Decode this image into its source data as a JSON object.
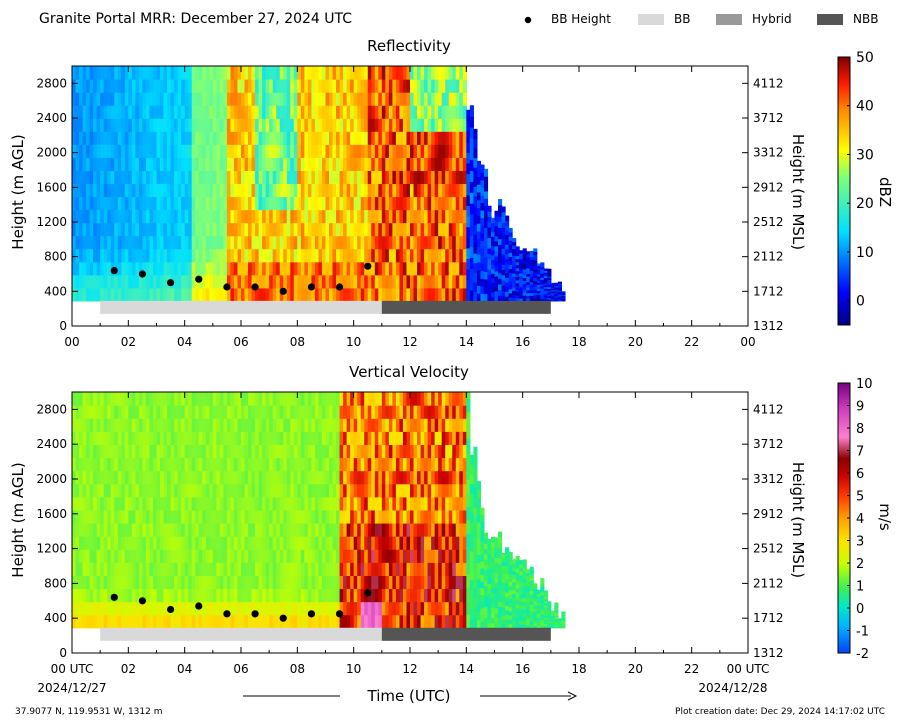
{
  "header": {
    "title": "Granite Portal MRR:  December 27, 2024 UTC",
    "legend": [
      {
        "label": "BB Height",
        "marker": "dot",
        "color": "#000000"
      },
      {
        "label": "BB",
        "marker": "box",
        "color": "#d9d9d9"
      },
      {
        "label": "Hybrid",
        "marker": "box",
        "color": "#999999"
      },
      {
        "label": "NBB",
        "marker": "box",
        "color": "#555555"
      }
    ]
  },
  "footer": {
    "location": "37.9077 N, 119.9531 W, 1312 m",
    "creation": "Plot creation date: Dec 29, 2024 14:17:02 UTC",
    "time_label": "Time (UTC)",
    "date_start": "2024/12/27",
    "date_end": "2024/12/28"
  },
  "chart_data": [
    {
      "type": "heatmap",
      "title": "Reflectivity",
      "ylabel": "Height (m AGL)",
      "ylabel_right": "Height (m MSL)",
      "colorbar_label": "dBZ",
      "colorbar_ticks": [
        "50",
        "40",
        "30",
        "20",
        "10",
        "0"
      ],
      "colorbar_range": [
        -5,
        50
      ],
      "colorscale": "jet",
      "xlim": [
        0,
        24
      ],
      "x_ticks": [
        "00",
        "02",
        "04",
        "06",
        "08",
        "10",
        "12",
        "14",
        "16",
        "18",
        "20",
        "22",
        "00"
      ],
      "ylim": [
        0,
        3000
      ],
      "y_ticks": [
        "0",
        "400",
        "800",
        "1200",
        "1600",
        "2000",
        "2400",
        "2800"
      ],
      "y_ticks_right": [
        "1312",
        "1712",
        "2112",
        "2512",
        "2912",
        "3312",
        "3712",
        "4112"
      ],
      "data_top_extent": [
        [
          0,
          3000
        ],
        [
          4.5,
          3000
        ],
        [
          8,
          3000
        ],
        [
          12,
          3000
        ],
        [
          14,
          3000
        ],
        [
          14.5,
          1700
        ],
        [
          15.5,
          1150
        ],
        [
          16.5,
          850
        ],
        [
          17.1,
          550
        ],
        [
          17.5,
          400
        ]
      ],
      "data_bottom_height": 290,
      "segments": [
        {
          "t0": 0,
          "t1": 5.5,
          "dbz": 14,
          "desc": "cyan-blue aloft, yellow-green near bottom"
        },
        {
          "t0": 5.5,
          "t1": 10.5,
          "dbz": 33,
          "desc": "orange"
        },
        {
          "t0": 10.5,
          "t1": 14,
          "dbz": 40,
          "desc": "orange-red"
        },
        {
          "t0": 14,
          "t1": 17.5,
          "dbz": 3,
          "desc": "blue"
        }
      ],
      "bb_height": {
        "x": [
          1.5,
          2.5,
          3.5,
          4.5,
          5.5,
          6.5,
          7.5,
          8.5,
          9.5,
          10.5
        ],
        "y": [
          640,
          600,
          500,
          540,
          450,
          450,
          400,
          450,
          450,
          690
        ]
      },
      "bb_type_bar": [
        {
          "type": "BB",
          "start": 1,
          "end": 11
        },
        {
          "type": "NBB",
          "start": 11,
          "end": 17
        }
      ]
    },
    {
      "type": "heatmap",
      "title": "Vertical Velocity",
      "ylabel": "Height (m AGL)",
      "ylabel_right": "Height (m MSL)",
      "colorbar_label": "m/s",
      "colorbar_ticks": [
        "10",
        "9",
        "8",
        "7",
        "6",
        "5",
        "4",
        "3",
        "2",
        "1",
        "0",
        "-1",
        "-2"
      ],
      "colorbar_range": [
        -2,
        10
      ],
      "colorscale": "velocity",
      "xlim": [
        0,
        24
      ],
      "x_ticks": [
        "00 UTC",
        "02",
        "04",
        "06",
        "08",
        "10",
        "12",
        "14",
        "16",
        "18",
        "20",
        "22",
        "00 UTC"
      ],
      "ylim": [
        0,
        3000
      ],
      "y_ticks": [
        "0",
        "400",
        "800",
        "1200",
        "1600",
        "2000",
        "2400",
        "2800"
      ],
      "y_ticks_right": [
        "1312",
        "1712",
        "2112",
        "2512",
        "2912",
        "3312",
        "3712",
        "4112"
      ],
      "data_top_extent": [
        [
          0,
          3000
        ],
        [
          4.5,
          3000
        ],
        [
          8,
          3000
        ],
        [
          12,
          3000
        ],
        [
          14,
          3000
        ],
        [
          14.5,
          1700
        ],
        [
          15.5,
          1150
        ],
        [
          16.5,
          850
        ],
        [
          17.1,
          550
        ],
        [
          17.5,
          400
        ]
      ],
      "data_bottom_height": 290,
      "segments": [
        {
          "t0": 0,
          "t1": 9.5,
          "ms": 1.5,
          "desc": "green aloft, red near bottom"
        },
        {
          "t0": 9.5,
          "t1": 14,
          "ms": 4.5,
          "desc": "yellow-orange-red"
        },
        {
          "t0": 14,
          "t1": 17.5,
          "ms": 0.5,
          "desc": "green-cyan"
        }
      ],
      "bb_height": {
        "x": [
          1.5,
          2.5,
          3.5,
          4.5,
          5.5,
          6.5,
          7.5,
          8.5,
          9.5,
          10.5
        ],
        "y": [
          640,
          600,
          500,
          540,
          450,
          450,
          400,
          450,
          450,
          690
        ]
      },
      "bb_type_bar": [
        {
          "type": "BB",
          "start": 1,
          "end": 11
        },
        {
          "type": "NBB",
          "start": 11,
          "end": 17
        }
      ]
    }
  ]
}
